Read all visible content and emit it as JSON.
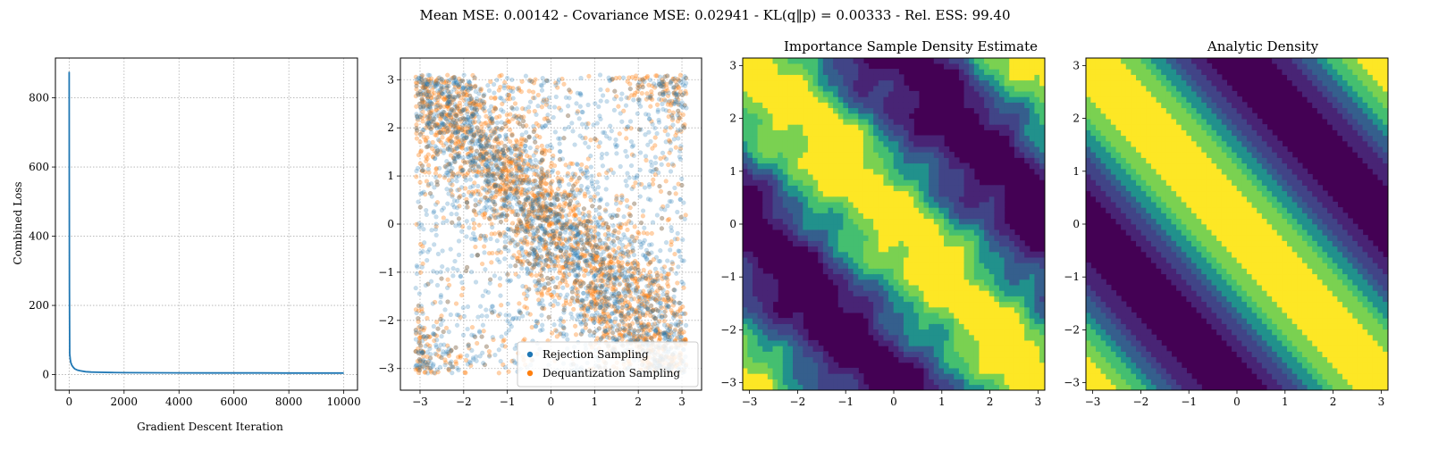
{
  "suptitle": "Mean MSE: 0.00142 - Covariance MSE: 0.02941 - KL(q‖p) = 0.00333 - Rel. ESS: 99.40",
  "colors": {
    "blue": "#1f77b4",
    "orange": "#ff7f0e",
    "grid": "#b0b0b0",
    "viridis": [
      "#440154",
      "#482475",
      "#414487",
      "#355f8d",
      "#2a788e",
      "#21918c",
      "#22a884",
      "#44bf70",
      "#7ad151",
      "#bddf26",
      "#fde725"
    ]
  },
  "chart_data": [
    {
      "type": "line",
      "title": "",
      "xlabel": "Gradient Descent Iteration",
      "ylabel": "Combined Loss",
      "xlim": [
        -500,
        10500
      ],
      "ylim": [
        -45,
        915
      ],
      "xticks": [
        0,
        2000,
        4000,
        6000,
        8000,
        10000
      ],
      "yticks": [
        0,
        200,
        400,
        600,
        800
      ],
      "grid": true,
      "series": [
        {
          "x": [
            0,
            5,
            10,
            20,
            40,
            60,
            100,
            150,
            200,
            300,
            400,
            600,
            800,
            1000,
            1500,
            2000,
            3000,
            4000,
            5000,
            6000,
            7000,
            8000,
            9000,
            10000
          ],
          "values": [
            875,
            600,
            250,
            60,
            45,
            35,
            27,
            21,
            17,
            13,
            11,
            8.5,
            7.5,
            7,
            6,
            5.6,
            5.2,
            5,
            4.9,
            4.8,
            4.7,
            4.6,
            4.5,
            4.5
          ]
        }
      ]
    },
    {
      "type": "scatter",
      "title": "",
      "xlabel": "",
      "ylabel": "",
      "xlim": [
        -3.45,
        3.45
      ],
      "ylim": [
        -3.45,
        3.45
      ],
      "xticks": [
        -3,
        -2,
        -1,
        0,
        1,
        2,
        3
      ],
      "yticks": [
        -3,
        -2,
        -1,
        0,
        1,
        2,
        3
      ],
      "grid": true,
      "legend_position": "lower-right",
      "series": [
        {
          "name": "Rejection Sampling",
          "n_points": 2600,
          "alpha": 0.25
        },
        {
          "name": "Dequantization Sampling",
          "n_points": 2600,
          "alpha": 0.35
        }
      ]
    },
    {
      "type": "heatmap",
      "title": "Importance Sample Density Estimate",
      "xlabel": "",
      "ylabel": "",
      "xlim": [
        -3.14159,
        3.14159
      ],
      "ylim": [
        -3.14159,
        3.14159
      ],
      "xticks": [
        -3,
        -2,
        -1,
        0,
        1,
        2,
        3
      ],
      "yticks": [
        -3,
        -2,
        -1,
        0,
        1,
        2,
        3
      ],
      "density": "wrapped band along x + y = 0",
      "levels": 8
    },
    {
      "type": "heatmap",
      "title": "Analytic Density",
      "xlabel": "",
      "ylabel": "",
      "xlim": [
        -3.14159,
        3.14159
      ],
      "ylim": [
        -3.14159,
        3.14159
      ],
      "xticks": [
        -3,
        -2,
        -1,
        0,
        1,
        2,
        3
      ],
      "yticks": [
        -3,
        -2,
        -1,
        0,
        1,
        2,
        3
      ],
      "density": "wrapped band along x + y = 0",
      "levels": 8
    }
  ]
}
